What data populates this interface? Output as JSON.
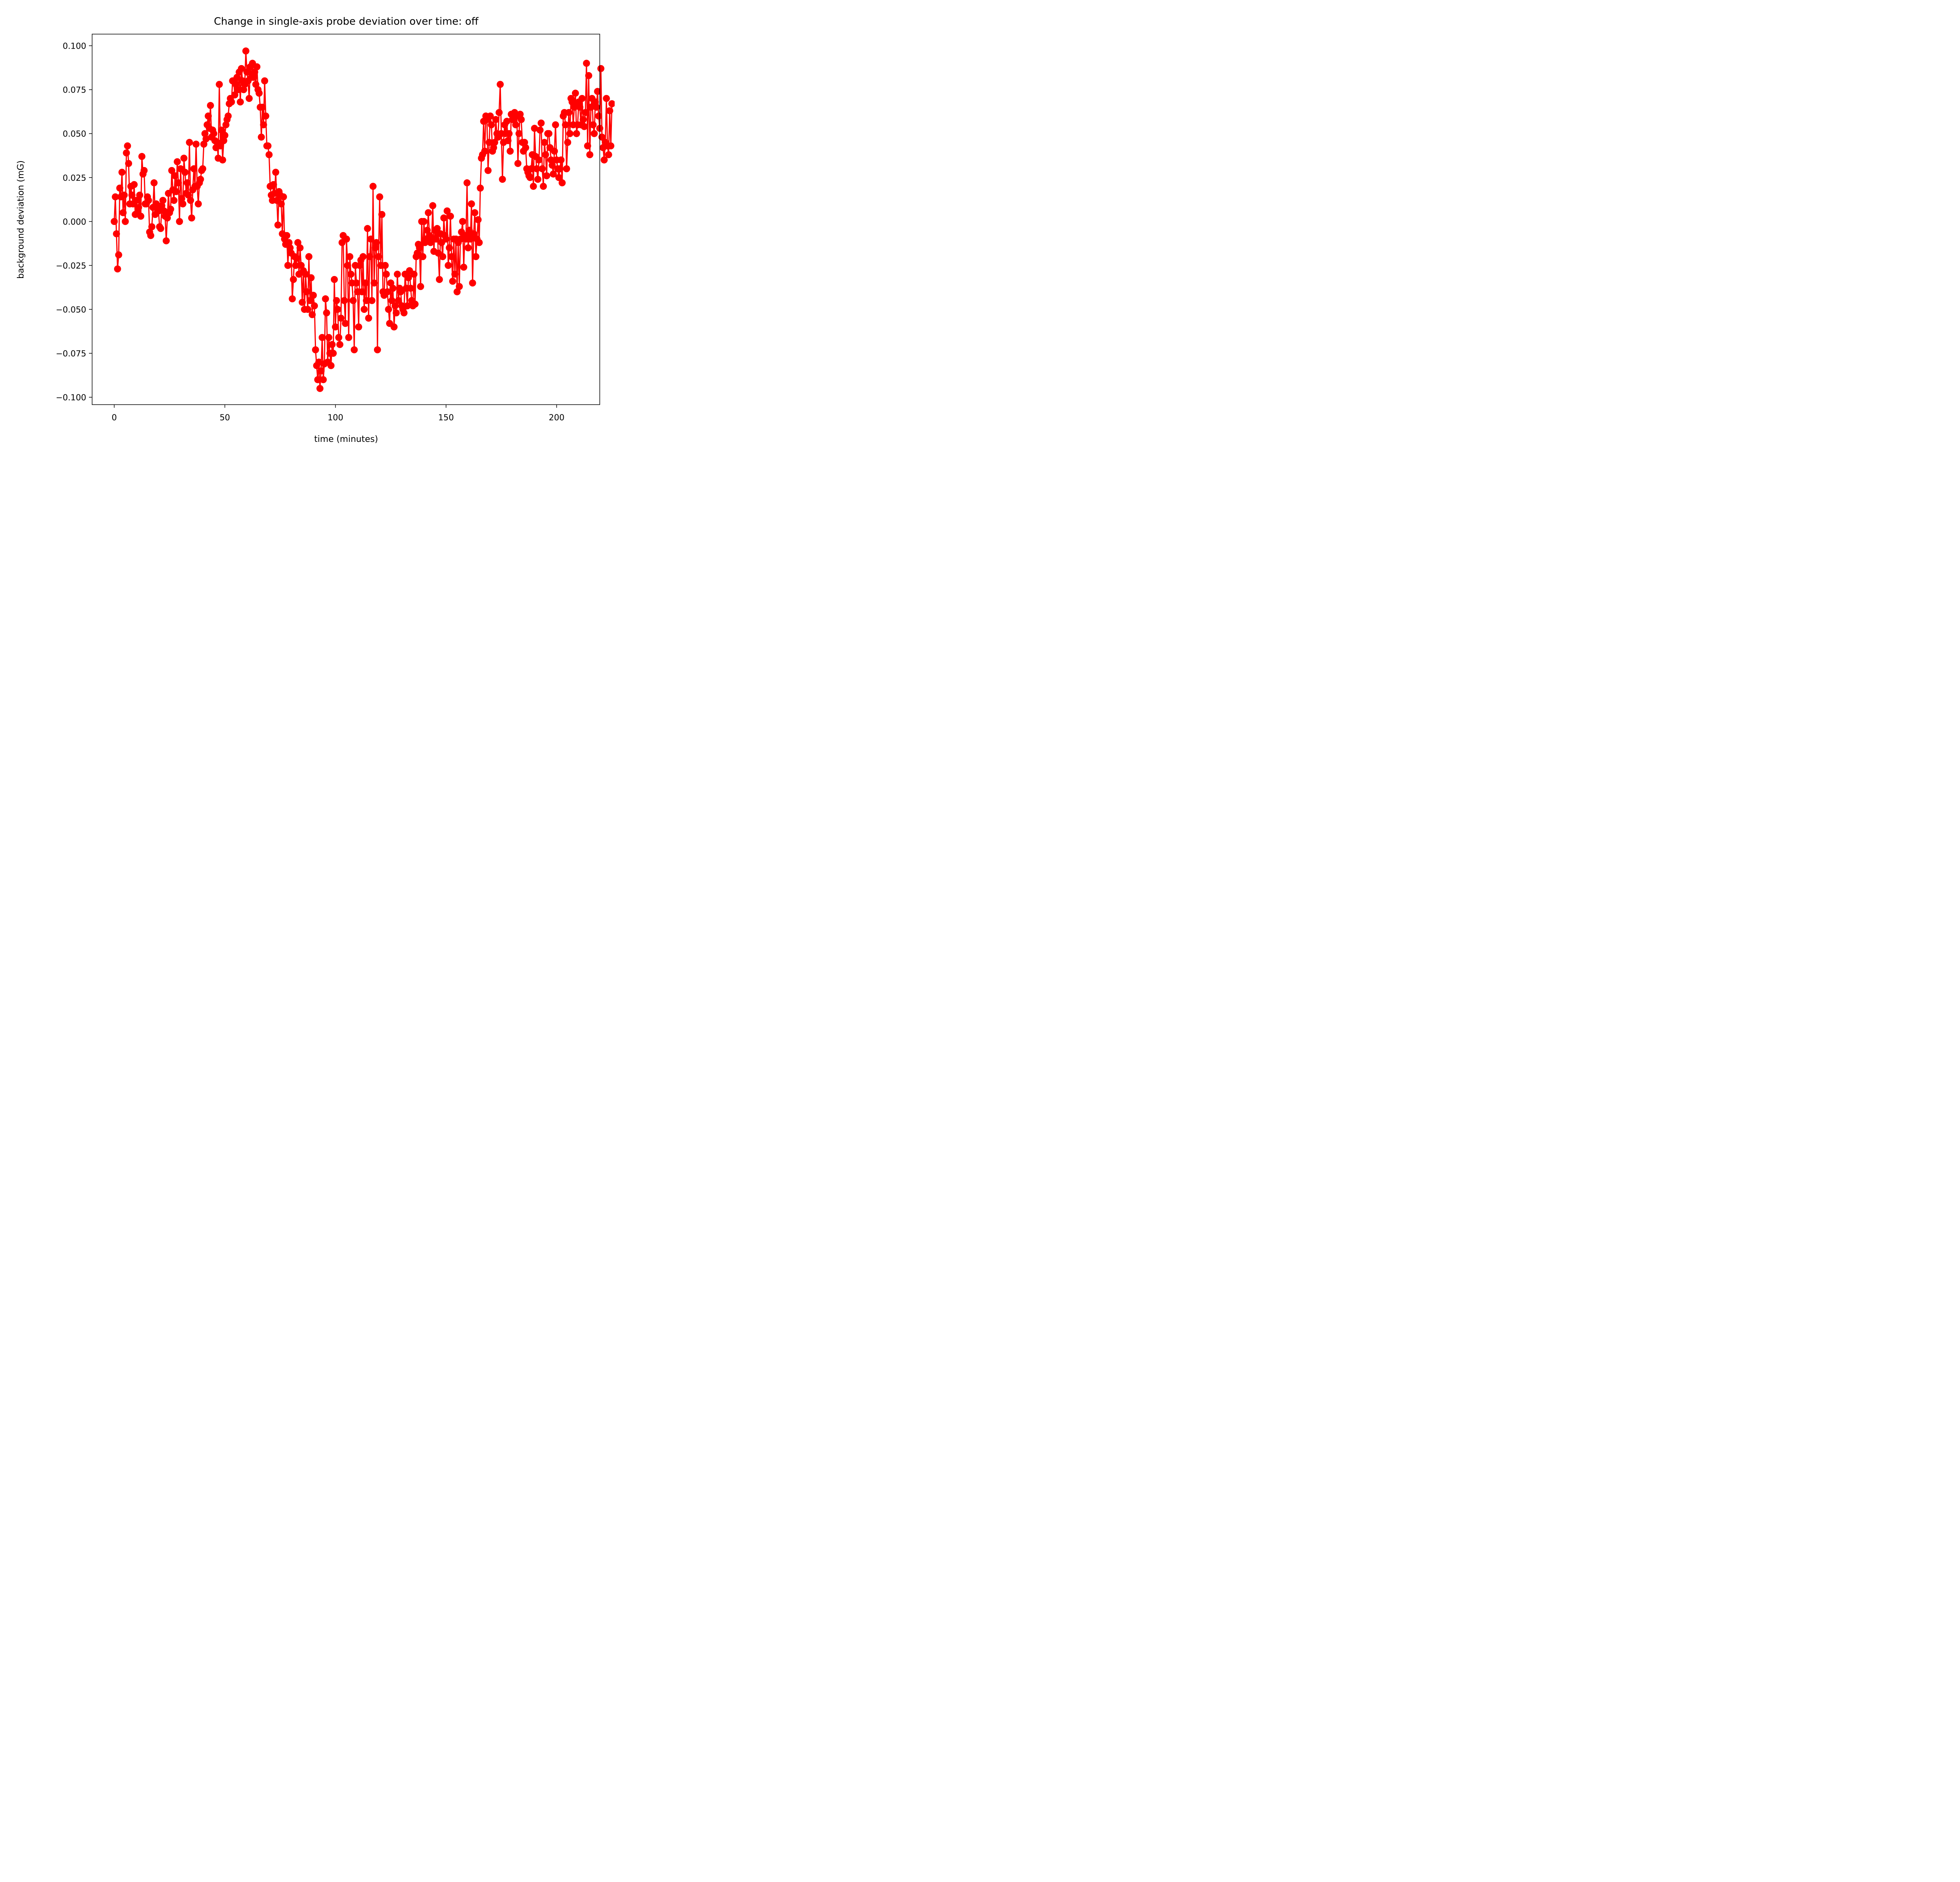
{
  "chart_data": {
    "type": "line",
    "title": "Change in single-axis probe deviation over time: off",
    "xlabel": "time (minutes)",
    "ylabel": "background deviation (mG)",
    "xlim": [
      -10,
      219.5
    ],
    "ylim": [
      -0.1042,
      0.1066
    ],
    "xticks": [
      0,
      50,
      100,
      150,
      200
    ],
    "xtick_labels": [
      "0",
      "50",
      "100",
      "150",
      "200"
    ],
    "yticks": [
      -0.1,
      -0.075,
      -0.05,
      -0.025,
      0.0,
      0.025,
      0.05,
      0.075,
      0.1
    ],
    "ytick_labels": [
      "−0.100",
      "−0.075",
      "−0.050",
      "−0.025",
      "0.000",
      "0.025",
      "0.050",
      "0.075",
      "0.100"
    ],
    "grid": false,
    "legend": "none",
    "series": [
      {
        "color": "#ff0000",
        "marker": "circle",
        "x_start": 0,
        "x_step": 0.5,
        "values": [
          0.0,
          0.014,
          -0.007,
          -0.027,
          -0.019,
          0.019,
          0.014,
          0.028,
          0.005,
          0.015,
          0.0,
          0.039,
          0.043,
          0.033,
          0.01,
          0.02,
          0.015,
          0.01,
          0.021,
          0.004,
          0.012,
          0.005,
          0.008,
          0.015,
          0.003,
          0.037,
          0.027,
          0.029,
          0.01,
          0.01,
          0.014,
          0.012,
          -0.006,
          -0.008,
          -0.003,
          0.008,
          0.022,
          0.004,
          0.01,
          0.008,
          0.006,
          -0.003,
          -0.004,
          0.009,
          0.012,
          0.006,
          0.003,
          -0.011,
          0.002,
          0.016,
          0.005,
          0.007,
          0.029,
          0.018,
          0.012,
          0.026,
          0.017,
          0.034,
          0.022,
          0.0,
          0.03,
          0.013,
          0.01,
          0.036,
          0.028,
          0.016,
          0.022,
          0.015,
          0.045,
          0.012,
          0.002,
          0.018,
          0.03,
          0.02,
          0.044,
          0.02,
          0.01,
          0.022,
          0.024,
          0.029,
          0.03,
          0.044,
          0.05,
          0.047,
          0.055,
          0.06,
          0.053,
          0.066,
          0.048,
          0.052,
          0.05,
          0.046,
          0.042,
          0.045,
          0.036,
          0.078,
          0.043,
          0.052,
          0.035,
          0.046,
          0.049,
          0.055,
          0.058,
          0.06,
          0.067,
          0.07,
          0.068,
          0.08,
          0.08,
          0.072,
          0.078,
          0.082,
          0.075,
          0.085,
          0.068,
          0.087,
          0.08,
          0.075,
          0.078,
          0.097,
          0.085,
          0.08,
          0.07,
          0.088,
          0.082,
          0.09,
          0.082,
          0.085,
          0.078,
          0.088,
          0.075,
          0.073,
          0.065,
          0.048,
          0.065,
          0.055,
          0.08,
          0.06,
          0.043,
          0.043,
          0.038,
          0.02,
          0.015,
          0.012,
          0.021,
          0.016,
          0.028,
          0.012,
          -0.002,
          0.017,
          0.015,
          0.01,
          -0.007,
          0.014,
          -0.01,
          -0.013,
          -0.008,
          -0.025,
          -0.012,
          -0.015,
          -0.018,
          -0.044,
          -0.033,
          -0.02,
          -0.025,
          -0.021,
          -0.012,
          -0.03,
          -0.015,
          -0.025,
          -0.046,
          -0.028,
          -0.05,
          -0.03,
          -0.04,
          -0.05,
          -0.02,
          -0.045,
          -0.032,
          -0.053,
          -0.042,
          -0.048,
          -0.073,
          -0.082,
          -0.09,
          -0.08,
          -0.095,
          -0.085,
          -0.066,
          -0.09,
          -0.081,
          -0.044,
          -0.052,
          -0.08,
          -0.066,
          -0.075,
          -0.082,
          -0.07,
          -0.075,
          -0.033,
          -0.06,
          -0.045,
          -0.05,
          -0.066,
          -0.07,
          -0.055,
          -0.012,
          -0.008,
          -0.045,
          -0.058,
          -0.01,
          -0.025,
          -0.066,
          -0.02,
          -0.03,
          -0.035,
          -0.045,
          -0.073,
          -0.025,
          -0.035,
          -0.04,
          -0.06,
          -0.025,
          -0.022,
          -0.04,
          -0.02,
          -0.05,
          -0.035,
          -0.045,
          -0.004,
          -0.055,
          -0.02,
          -0.01,
          -0.045,
          0.02,
          -0.035,
          -0.015,
          -0.012,
          -0.073,
          -0.02,
          0.014,
          -0.025,
          0.004,
          -0.04,
          -0.042,
          -0.025,
          -0.03,
          -0.04,
          -0.05,
          -0.058,
          -0.035,
          -0.045,
          -0.038,
          -0.06,
          -0.048,
          -0.052,
          -0.03,
          -0.045,
          -0.038,
          -0.04,
          -0.048,
          -0.05,
          -0.052,
          -0.03,
          -0.038,
          -0.048,
          -0.032,
          -0.028,
          -0.038,
          -0.045,
          -0.048,
          -0.03,
          -0.047,
          -0.02,
          -0.018,
          -0.013,
          -0.015,
          -0.037,
          -0.0,
          -0.02,
          0.0,
          -0.012,
          -0.01,
          -0.005,
          0.005,
          -0.008,
          -0.012,
          -0.01,
          0.009,
          -0.017,
          -0.005,
          -0.01,
          -0.004,
          -0.018,
          -0.033,
          -0.007,
          -0.012,
          -0.02,
          0.002,
          -0.008,
          -0.01,
          0.006,
          -0.025,
          -0.015,
          0.003,
          -0.02,
          -0.034,
          -0.01,
          -0.03,
          -0.01,
          -0.04,
          -0.012,
          -0.037,
          -0.01,
          -0.006,
          0.0,
          -0.026,
          -0.008,
          -0.01,
          0.022,
          -0.015,
          -0.005,
          -0.01,
          0.01,
          -0.035,
          -0.007,
          0.005,
          -0.02,
          -0.01,
          0.001,
          -0.012,
          0.019,
          0.036,
          0.038,
          0.057,
          0.04,
          0.06,
          0.058,
          0.029,
          0.045,
          0.06,
          0.055,
          0.04,
          0.042,
          0.045,
          0.058,
          0.05,
          0.048,
          0.062,
          0.078,
          0.05,
          0.024,
          0.045,
          0.055,
          0.05,
          0.057,
          0.046,
          0.05,
          0.04,
          0.061,
          0.058,
          0.06,
          0.062,
          0.055,
          0.06,
          0.033,
          0.05,
          0.061,
          0.058,
          0.045,
          0.04,
          0.045,
          0.042,
          0.03,
          0.028,
          0.026,
          0.025,
          0.03,
          0.038,
          0.02,
          0.053,
          0.037,
          0.03,
          0.024,
          0.035,
          0.052,
          0.056,
          0.03,
          0.02,
          0.045,
          0.038,
          0.026,
          0.05,
          0.05,
          0.042,
          0.035,
          0.032,
          0.027,
          0.04,
          0.055,
          0.035,
          0.03,
          0.025,
          0.03,
          0.035,
          0.022,
          0.06,
          0.062,
          0.055,
          0.03,
          0.045,
          0.062,
          0.05,
          0.07,
          0.068,
          0.055,
          0.065,
          0.073,
          0.05,
          0.055,
          0.068,
          0.065,
          0.055,
          0.07,
          0.058,
          0.054,
          0.062,
          0.09,
          0.043,
          0.083,
          0.038,
          0.065,
          0.07,
          0.055,
          0.05,
          0.068,
          0.065,
          0.074,
          0.06,
          0.053,
          0.087,
          0.048,
          0.042,
          0.035,
          0.045,
          0.07,
          0.043,
          0.038,
          0.063,
          0.043,
          0.067
        ]
      }
    ]
  }
}
